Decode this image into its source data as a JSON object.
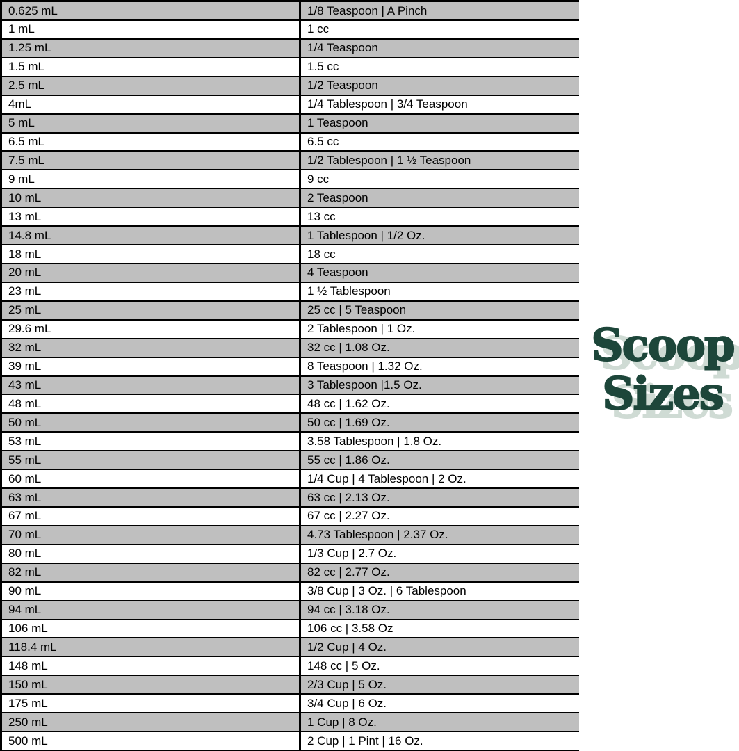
{
  "page": {
    "background_color": "#ffffff"
  },
  "logo": {
    "line1": "Scoop",
    "line2": "Sizes",
    "text_color": "#1d463a",
    "shadow_color": "#cfdbd4"
  },
  "table_style": {
    "shaded_row_color": "#bfbfbf",
    "plain_row_color": "#ffffff",
    "border_color": "#000000",
    "text_color": "#000000"
  },
  "chart_data": {
    "type": "table",
    "title": "Scoop Sizes",
    "rows": [
      [
        "0.625 mL",
        "1/8 Teaspoon | A Pinch"
      ],
      [
        "1 mL",
        "1 cc"
      ],
      [
        "1.25 mL",
        "1/4 Teaspoon"
      ],
      [
        "1.5 mL",
        "1.5 cc"
      ],
      [
        "2.5 mL",
        "1/2 Teaspoon"
      ],
      [
        "4mL",
        "1/4 Tablespoon | 3/4 Teaspoon"
      ],
      [
        "5 mL",
        "1 Teaspoon"
      ],
      [
        "6.5 mL",
        "6.5 cc"
      ],
      [
        "7.5 mL",
        "1/2 Tablespoon | 1 ½ Teaspoon"
      ],
      [
        "9 mL",
        "9 cc"
      ],
      [
        "10 mL",
        "2 Teaspoon"
      ],
      [
        "13 mL",
        "13 cc"
      ],
      [
        "14.8 mL",
        "1 Tablespoon | 1/2 Oz."
      ],
      [
        "18 mL",
        "18 cc"
      ],
      [
        "20 mL",
        "4 Teaspoon"
      ],
      [
        "23 mL",
        "1 ½ Tablespoon"
      ],
      [
        "25 mL",
        "25 cc | 5 Teaspoon"
      ],
      [
        "29.6 mL",
        "2 Tablespoon | 1 Oz."
      ],
      [
        "32 mL",
        "32 cc | 1.08 Oz."
      ],
      [
        "39 mL",
        "8 Teaspoon | 1.32 Oz."
      ],
      [
        "43 mL",
        "3 Tablespoon |1.5 Oz."
      ],
      [
        "48 mL",
        "48 cc | 1.62 Oz."
      ],
      [
        "50 mL",
        "50 cc | 1.69 Oz."
      ],
      [
        "53 mL",
        "3.58 Tablespoon | 1.8 Oz."
      ],
      [
        "55 mL",
        "55 cc | 1.86 Oz."
      ],
      [
        "60 mL",
        "1/4 Cup | 4 Tablespoon | 2 Oz."
      ],
      [
        "63 mL",
        "63 cc | 2.13 Oz."
      ],
      [
        "67 mL",
        "67 cc | 2.27 Oz."
      ],
      [
        "70 mL",
        "4.73 Tablespoon | 2.37 Oz."
      ],
      [
        "80 mL",
        "1/3 Cup | 2.7 Oz."
      ],
      [
        "82 mL",
        "82 cc | 2.77 Oz."
      ],
      [
        "90 mL",
        "3/8 Cup | 3 Oz. | 6 Tablespoon"
      ],
      [
        "94 mL",
        "94 cc | 3.18 Oz."
      ],
      [
        "106 mL",
        "106 cc | 3.58 Oz"
      ],
      [
        "118.4 mL",
        "1/2 Cup | 4 Oz."
      ],
      [
        "148 mL",
        "148 cc | 5 Oz."
      ],
      [
        "150 mL",
        "2/3 Cup | 5 Oz."
      ],
      [
        "175 mL",
        "3/4 Cup | 6 Oz."
      ],
      [
        "250 mL",
        "1 Cup | 8 Oz."
      ],
      [
        "500 mL",
        "2 Cup | 1 Pint | 16 Oz."
      ]
    ]
  }
}
